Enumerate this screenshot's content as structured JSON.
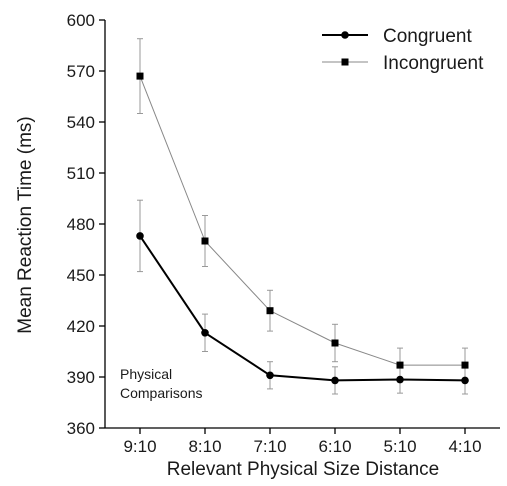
{
  "chart_data": {
    "type": "line",
    "title": "",
    "xlabel": "Relevant Physical Size Distance",
    "ylabel": "Mean Reaction Time (ms)",
    "categories": [
      "9:10",
      "8:10",
      "7:10",
      "6:10",
      "5:10",
      "4:10"
    ],
    "ylim": [
      360,
      600
    ],
    "yticks": [
      360,
      390,
      420,
      450,
      480,
      510,
      540,
      570,
      600
    ],
    "ytick_labels": [
      "360",
      "390",
      "420",
      "450",
      "480",
      "510",
      "540",
      "570",
      "600"
    ],
    "grid": false,
    "legend_position": "top-right",
    "annotation": [
      "Physical",
      "Comparisons"
    ],
    "series": [
      {
        "name": "Congruent",
        "marker": "circle",
        "color": "#000000",
        "values": [
          473,
          416,
          391,
          388,
          388.5,
          388
        ],
        "error": [
          21,
          11,
          8,
          8,
          8,
          8
        ]
      },
      {
        "name": "Incongruent",
        "marker": "square",
        "color": "#000000",
        "values": [
          567,
          470,
          429,
          410,
          397,
          397
        ],
        "error": [
          22,
          15,
          12,
          11,
          10,
          10
        ]
      }
    ]
  }
}
